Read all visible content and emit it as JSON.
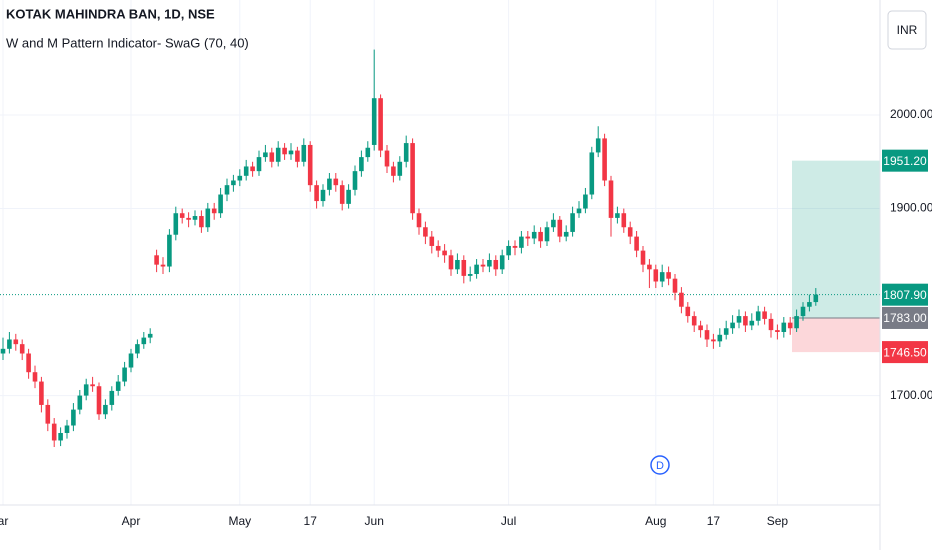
{
  "chart_data": {
    "type": "candlestick",
    "title": "KOTAK MAHINDRA BAN, 1D, NSE",
    "subtitle": "W and M Pattern Indicator- SwaG (70, 40)",
    "currency_button": "INR",
    "up_color": "#089981",
    "down_color": "#f23645",
    "categories": [
      "ar",
      null,
      null,
      null,
      null,
      null,
      null,
      null,
      null,
      null,
      null,
      null,
      null,
      null,
      null,
      null,
      null,
      null,
      null,
      null,
      "Apr",
      null,
      null,
      null,
      null,
      null,
      null,
      null,
      null,
      null,
      null,
      null,
      null,
      null,
      null,
      null,
      null,
      "May",
      null,
      null,
      null,
      null,
      null,
      null,
      null,
      null,
      null,
      null,
      "17",
      null,
      null,
      null,
      null,
      null,
      null,
      null,
      null,
      null,
      "Jun",
      null,
      null,
      null,
      null,
      null,
      null,
      null,
      null,
      null,
      null,
      null,
      null,
      null,
      null,
      null,
      null,
      null,
      null,
      null,
      null,
      "Jul",
      null,
      null,
      null,
      null,
      null,
      null,
      null,
      null,
      null,
      null,
      null,
      null,
      null,
      null,
      null,
      null,
      null,
      null,
      null,
      null,
      null,
      null,
      "Aug",
      null,
      null,
      null,
      null,
      null,
      null,
      null,
      null,
      "17",
      null,
      null,
      null,
      null,
      null,
      null,
      null,
      null,
      null,
      "Sep",
      null,
      null,
      null,
      null,
      null,
      null
    ],
    "ohlc": [
      [
        1745,
        1762,
        1738,
        1750
      ],
      [
        1750,
        1768,
        1745,
        1760
      ],
      [
        1760,
        1766,
        1748,
        1755
      ],
      [
        1755,
        1760,
        1738,
        1745
      ],
      [
        1745,
        1750,
        1718,
        1725
      ],
      [
        1725,
        1732,
        1708,
        1715
      ],
      [
        1715,
        1720,
        1682,
        1690
      ],
      [
        1690,
        1696,
        1662,
        1670
      ],
      [
        1670,
        1676,
        1645,
        1652
      ],
      [
        1652,
        1666,
        1646,
        1660
      ],
      [
        1660,
        1674,
        1654,
        1668
      ],
      [
        1668,
        1692,
        1662,
        1685
      ],
      [
        1685,
        1706,
        1680,
        1700
      ],
      [
        1700,
        1718,
        1695,
        1712
      ],
      [
        1712,
        1720,
        1704,
        1710
      ],
      [
        1710,
        1714,
        1674,
        1680
      ],
      [
        1680,
        1696,
        1675,
        1690
      ],
      [
        1690,
        1710,
        1684,
        1705
      ],
      [
        1705,
        1722,
        1700,
        1715
      ],
      [
        1715,
        1736,
        1710,
        1730
      ],
      [
        1730,
        1750,
        1725,
        1745
      ],
      [
        1745,
        1760,
        1740,
        1755
      ],
      [
        1755,
        1768,
        1750,
        1762
      ],
      [
        1762,
        1772,
        1756,
        1766
      ],
      [
        1850,
        1856,
        1832,
        1840
      ],
      [
        1840,
        1848,
        1830,
        1838
      ],
      [
        1838,
        1878,
        1832,
        1872
      ],
      [
        1872,
        1902,
        1866,
        1895
      ],
      [
        1895,
        1900,
        1884,
        1890
      ],
      [
        1890,
        1896,
        1880,
        1888
      ],
      [
        1888,
        1898,
        1882,
        1892
      ],
      [
        1892,
        1898,
        1874,
        1880
      ],
      [
        1880,
        1906,
        1875,
        1900
      ],
      [
        1900,
        1906,
        1888,
        1895
      ],
      [
        1895,
        1922,
        1890,
        1915
      ],
      [
        1915,
        1932,
        1908,
        1925
      ],
      [
        1925,
        1936,
        1918,
        1930
      ],
      [
        1930,
        1942,
        1924,
        1935
      ],
      [
        1935,
        1952,
        1930,
        1945
      ],
      [
        1945,
        1950,
        1934,
        1940
      ],
      [
        1940,
        1962,
        1935,
        1955
      ],
      [
        1955,
        1968,
        1950,
        1960
      ],
      [
        1960,
        1965,
        1944,
        1950
      ],
      [
        1950,
        1972,
        1945,
        1965
      ],
      [
        1965,
        1970,
        1952,
        1958
      ],
      [
        1958,
        1970,
        1952,
        1962
      ],
      [
        1962,
        1966,
        1944,
        1950
      ],
      [
        1950,
        1975,
        1945,
        1968
      ],
      [
        1968,
        1972,
        1918,
        1925
      ],
      [
        1925,
        1930,
        1900,
        1908
      ],
      [
        1908,
        1926,
        1902,
        1920
      ],
      [
        1920,
        1938,
        1914,
        1932
      ],
      [
        1932,
        1938,
        1918,
        1925
      ],
      [
        1925,
        1930,
        1898,
        1905
      ],
      [
        1905,
        1926,
        1900,
        1920
      ],
      [
        1920,
        1946,
        1914,
        1940
      ],
      [
        1940,
        1962,
        1934,
        1955
      ],
      [
        1955,
        1972,
        1950,
        1965
      ],
      [
        1968,
        2070,
        1962,
        2018
      ],
      [
        2018,
        2022,
        1955,
        1962
      ],
      [
        1962,
        1968,
        1938,
        1945
      ],
      [
        1945,
        1950,
        1928,
        1935
      ],
      [
        1935,
        1956,
        1930,
        1950
      ],
      [
        1950,
        1978,
        1944,
        1970
      ],
      [
        1970,
        1975,
        1888,
        1895
      ],
      [
        1895,
        1900,
        1872,
        1880
      ],
      [
        1880,
        1886,
        1862,
        1870
      ],
      [
        1870,
        1876,
        1852,
        1860
      ],
      [
        1860,
        1866,
        1848,
        1855
      ],
      [
        1855,
        1862,
        1842,
        1850
      ],
      [
        1850,
        1856,
        1828,
        1835
      ],
      [
        1835,
        1852,
        1830,
        1845
      ],
      [
        1845,
        1850,
        1820,
        1828
      ],
      [
        1828,
        1838,
        1822,
        1830
      ],
      [
        1830,
        1846,
        1825,
        1840
      ],
      [
        1840,
        1846,
        1832,
        1838
      ],
      [
        1838,
        1852,
        1832,
        1845
      ],
      [
        1845,
        1850,
        1828,
        1835
      ],
      [
        1835,
        1856,
        1830,
        1850
      ],
      [
        1850,
        1866,
        1845,
        1860
      ],
      [
        1860,
        1866,
        1850,
        1858
      ],
      [
        1858,
        1876,
        1852,
        1870
      ],
      [
        1870,
        1876,
        1860,
        1868
      ],
      [
        1868,
        1882,
        1862,
        1875
      ],
      [
        1875,
        1880,
        1858,
        1865
      ],
      [
        1865,
        1886,
        1860,
        1880
      ],
      [
        1880,
        1895,
        1875,
        1888
      ],
      [
        1888,
        1892,
        1864,
        1870
      ],
      [
        1870,
        1882,
        1865,
        1875
      ],
      [
        1875,
        1902,
        1870,
        1895
      ],
      [
        1895,
        1908,
        1890,
        1900
      ],
      [
        1900,
        1922,
        1895,
        1915
      ],
      [
        1915,
        1966,
        1910,
        1960
      ],
      [
        1960,
        1988,
        1955,
        1975
      ],
      [
        1975,
        1980,
        1924,
        1930
      ],
      [
        1930,
        1935,
        1870,
        1890
      ],
      [
        1890,
        1902,
        1884,
        1895
      ],
      [
        1895,
        1900,
        1874,
        1880
      ],
      [
        1880,
        1886,
        1862,
        1870
      ],
      [
        1870,
        1876,
        1848,
        1855
      ],
      [
        1855,
        1860,
        1832,
        1840
      ],
      [
        1840,
        1846,
        1815,
        1835
      ],
      [
        1835,
        1840,
        1815,
        1822
      ],
      [
        1822,
        1840,
        1816,
        1832
      ],
      [
        1832,
        1838,
        1818,
        1825
      ],
      [
        1825,
        1830,
        1802,
        1810
      ],
      [
        1810,
        1816,
        1788,
        1795
      ],
      [
        1795,
        1800,
        1778,
        1785
      ],
      [
        1785,
        1790,
        1768,
        1775
      ],
      [
        1775,
        1780,
        1762,
        1770
      ],
      [
        1770,
        1776,
        1752,
        1760
      ],
      [
        1760,
        1766,
        1750,
        1758
      ],
      [
        1758,
        1772,
        1752,
        1765
      ],
      [
        1765,
        1780,
        1760,
        1772
      ],
      [
        1772,
        1786,
        1766,
        1778
      ],
      [
        1778,
        1792,
        1772,
        1785
      ],
      [
        1785,
        1790,
        1768,
        1775
      ],
      [
        1775,
        1788,
        1770,
        1780
      ],
      [
        1780,
        1796,
        1775,
        1790
      ],
      [
        1790,
        1795,
        1776,
        1782
      ],
      [
        1782,
        1788,
        1762,
        1770
      ],
      [
        1770,
        1776,
        1760,
        1768
      ],
      [
        1768,
        1784,
        1762,
        1778
      ],
      [
        1778,
        1784,
        1765,
        1772
      ],
      [
        1772,
        1792,
        1768,
        1785
      ],
      [
        1785,
        1800,
        1780,
        1795
      ],
      [
        1795,
        1808,
        1790,
        1800
      ],
      [
        1800,
        1815,
        1796,
        1808
      ]
    ],
    "ylim": [
      1583,
      2123
    ],
    "yticks": [
      {
        "value": 1700,
        "label": "1700.00"
      },
      {
        "value": 1900,
        "label": "1900.00"
      },
      {
        "value": 2000,
        "label": "2000.00"
      }
    ],
    "grid": true,
    "current_price": {
      "value": 1807.9,
      "label": "1807.90",
      "color": "#089981"
    },
    "position": {
      "target": {
        "value": 1951.2,
        "label": "1951.20",
        "color": "#089981"
      },
      "entry": {
        "value": 1783,
        "label": "1783.00",
        "color": "#787b86"
      },
      "stop": {
        "value": 1746.5,
        "label": "1746.50",
        "color": "#f23645"
      }
    },
    "events": [
      {
        "label": "D"
      }
    ]
  }
}
